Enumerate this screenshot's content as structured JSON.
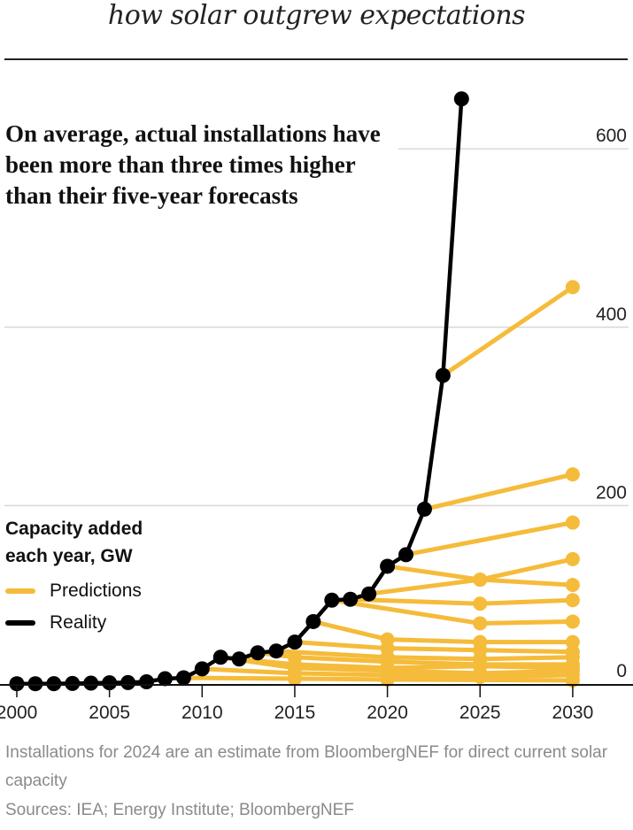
{
  "title": "how solar outgrew expectations",
  "headline": "On average, actual installations have been more than three times higher than their five-year forecasts",
  "legend": {
    "title": "Capacity added each year, GW",
    "predictions_label": "Predictions",
    "reality_label": "Reality"
  },
  "note": "Installations for 2024 are an estimate from BloombergNEF for direct current solar capacity",
  "source": "Sources: IEA; Energy Institute; BloombergNEF",
  "chart_data": {
    "type": "line",
    "title": "how solar outgrew expectations",
    "ylabel": "Capacity added each year, GW",
    "xlim": [
      2000,
      2030
    ],
    "ylim": [
      0,
      660
    ],
    "x_ticks": [
      "2000",
      "2005",
      "2010",
      "2015",
      "2020",
      "2025",
      "2030"
    ],
    "y_ticks": [
      "0",
      "200",
      "400",
      "600"
    ],
    "y_axis_side": "right",
    "grid": true,
    "legend_position": "left",
    "colors": {
      "predictions": "#f5bb3a",
      "reality": "#000000",
      "grid": "#d9d9d9"
    },
    "reality": {
      "name": "Reality",
      "x": [
        2000,
        2001,
        2002,
        2003,
        2004,
        2005,
        2006,
        2007,
        2008,
        2009,
        2010,
        2011,
        2012,
        2013,
        2014,
        2015,
        2016,
        2017,
        2018,
        2019,
        2020,
        2021,
        2022,
        2023,
        2024
      ],
      "y": [
        0.3,
        0.3,
        0.4,
        0.6,
        1,
        1.4,
        1.6,
        2.5,
        6,
        7,
        17,
        30,
        28,
        35,
        37,
        47,
        70,
        94,
        95,
        101,
        132,
        145,
        196,
        346,
        656
      ]
    },
    "predictions": [
      {
        "points": [
          [
            2009,
            7
          ],
          [
            2015,
            6
          ],
          [
            2020,
            5
          ],
          [
            2030,
            4
          ]
        ]
      },
      {
        "points": [
          [
            2010,
            17
          ],
          [
            2015,
            12
          ],
          [
            2020,
            10
          ],
          [
            2025,
            8
          ],
          [
            2030,
            10
          ]
        ]
      },
      {
        "points": [
          [
            2011,
            30
          ],
          [
            2015,
            18
          ],
          [
            2020,
            15
          ],
          [
            2025,
            12
          ],
          [
            2030,
            15
          ]
        ]
      },
      {
        "points": [
          [
            2012,
            28
          ],
          [
            2015,
            22
          ],
          [
            2020,
            18
          ],
          [
            2025,
            20
          ],
          [
            2030,
            18
          ]
        ]
      },
      {
        "points": [
          [
            2013,
            35
          ],
          [
            2015,
            30
          ],
          [
            2020,
            25
          ],
          [
            2025,
            22
          ],
          [
            2030,
            22
          ]
        ]
      },
      {
        "points": [
          [
            2014,
            37
          ],
          [
            2020,
            30
          ],
          [
            2025,
            28
          ],
          [
            2030,
            30
          ]
        ]
      },
      {
        "points": [
          [
            2015,
            47
          ],
          [
            2020,
            40
          ],
          [
            2025,
            38
          ],
          [
            2030,
            36
          ]
        ]
      },
      {
        "points": [
          [
            2016,
            70
          ],
          [
            2020,
            50
          ],
          [
            2025,
            47
          ],
          [
            2030,
            47
          ]
        ]
      },
      {
        "points": [
          [
            2017,
            94
          ],
          [
            2025,
            68
          ],
          [
            2030,
            70
          ]
        ]
      },
      {
        "points": [
          [
            2018,
            95
          ],
          [
            2025,
            90
          ],
          [
            2030,
            94
          ]
        ]
      },
      {
        "points": [
          [
            2019,
            101
          ],
          [
            2025,
            117
          ],
          [
            2030,
            111
          ]
        ]
      },
      {
        "points": [
          [
            2020,
            132
          ],
          [
            2025,
            117
          ],
          [
            2030,
            140
          ]
        ]
      },
      {
        "points": [
          [
            2021,
            145
          ],
          [
            2030,
            181
          ]
        ]
      },
      {
        "points": [
          [
            2022,
            196
          ],
          [
            2030,
            235
          ]
        ]
      },
      {
        "points": [
          [
            2023,
            346
          ],
          [
            2030,
            445
          ]
        ]
      }
    ]
  }
}
